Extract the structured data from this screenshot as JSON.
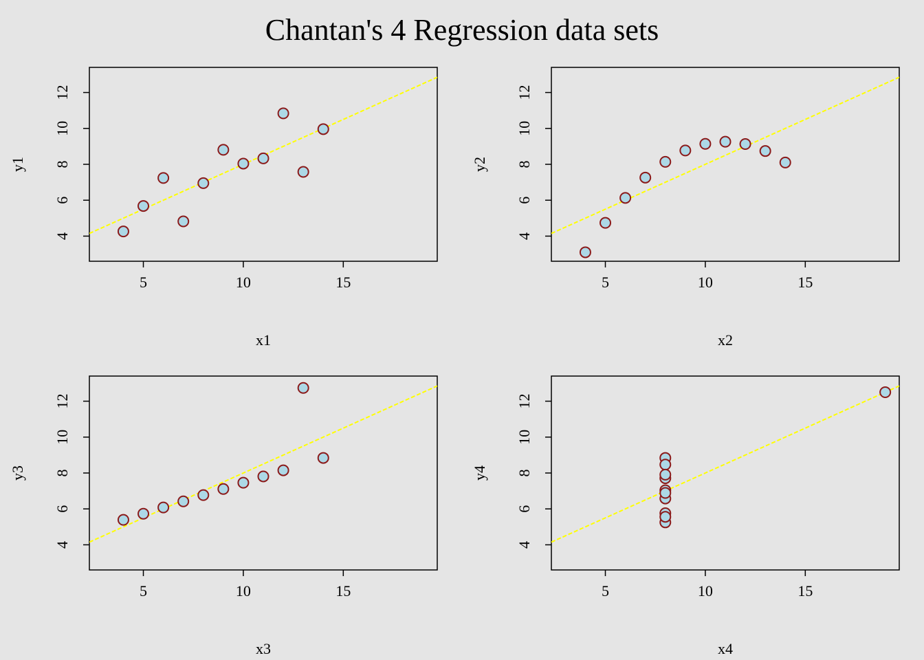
{
  "title": "Chantan's 4 Regression data sets",
  "colors": {
    "background": "#e5e5e5",
    "point_fill": "#add8e6",
    "point_stroke": "#8b1a1a",
    "fit_line": "#ffff00",
    "axis": "#000000"
  },
  "chart_data": [
    {
      "type": "scatter",
      "xlabel": "x1",
      "ylabel": "y1",
      "xlim": [
        2.3,
        19.7
      ],
      "ylim": [
        2.6,
        13.4
      ],
      "xticks": [
        5,
        10,
        15
      ],
      "yticks": [
        4,
        6,
        8,
        10,
        12
      ],
      "x": [
        10,
        8,
        13,
        9,
        11,
        14,
        6,
        4,
        12,
        7,
        5
      ],
      "y": [
        8.04,
        6.95,
        7.58,
        8.81,
        8.33,
        9.96,
        7.24,
        4.26,
        10.84,
        4.82,
        5.68
      ],
      "fit": {
        "intercept": 3.0,
        "slope": 0.5
      }
    },
    {
      "type": "scatter",
      "xlabel": "x2",
      "ylabel": "y2",
      "xlim": [
        2.3,
        19.7
      ],
      "ylim": [
        2.6,
        13.4
      ],
      "xticks": [
        5,
        10,
        15
      ],
      "yticks": [
        4,
        6,
        8,
        10,
        12
      ],
      "x": [
        10,
        8,
        13,
        9,
        11,
        14,
        6,
        4,
        12,
        7,
        5
      ],
      "y": [
        9.14,
        8.14,
        8.74,
        8.77,
        9.26,
        8.1,
        6.13,
        3.1,
        9.13,
        7.26,
        4.74
      ],
      "fit": {
        "intercept": 3.0,
        "slope": 0.5
      }
    },
    {
      "type": "scatter",
      "xlabel": "x3",
      "ylabel": "y3",
      "xlim": [
        2.3,
        19.7
      ],
      "ylim": [
        2.6,
        13.4
      ],
      "xticks": [
        5,
        10,
        15
      ],
      "yticks": [
        4,
        6,
        8,
        10,
        12
      ],
      "x": [
        10,
        8,
        13,
        9,
        11,
        14,
        6,
        4,
        12,
        7,
        5
      ],
      "y": [
        7.46,
        6.77,
        12.74,
        7.11,
        7.81,
        8.84,
        6.08,
        5.39,
        8.15,
        6.42,
        5.73
      ],
      "fit": {
        "intercept": 3.0,
        "slope": 0.5
      }
    },
    {
      "type": "scatter",
      "xlabel": "x4",
      "ylabel": "y4",
      "xlim": [
        2.3,
        19.7
      ],
      "ylim": [
        2.6,
        13.4
      ],
      "xticks": [
        5,
        10,
        15
      ],
      "yticks": [
        4,
        6,
        8,
        10,
        12
      ],
      "x": [
        8,
        8,
        8,
        8,
        8,
        8,
        8,
        19,
        8,
        8,
        8
      ],
      "y": [
        6.58,
        5.76,
        7.71,
        8.84,
        8.47,
        7.04,
        5.25,
        12.5,
        5.56,
        7.91,
        6.89
      ],
      "fit": {
        "intercept": 3.0,
        "slope": 0.5
      }
    }
  ]
}
